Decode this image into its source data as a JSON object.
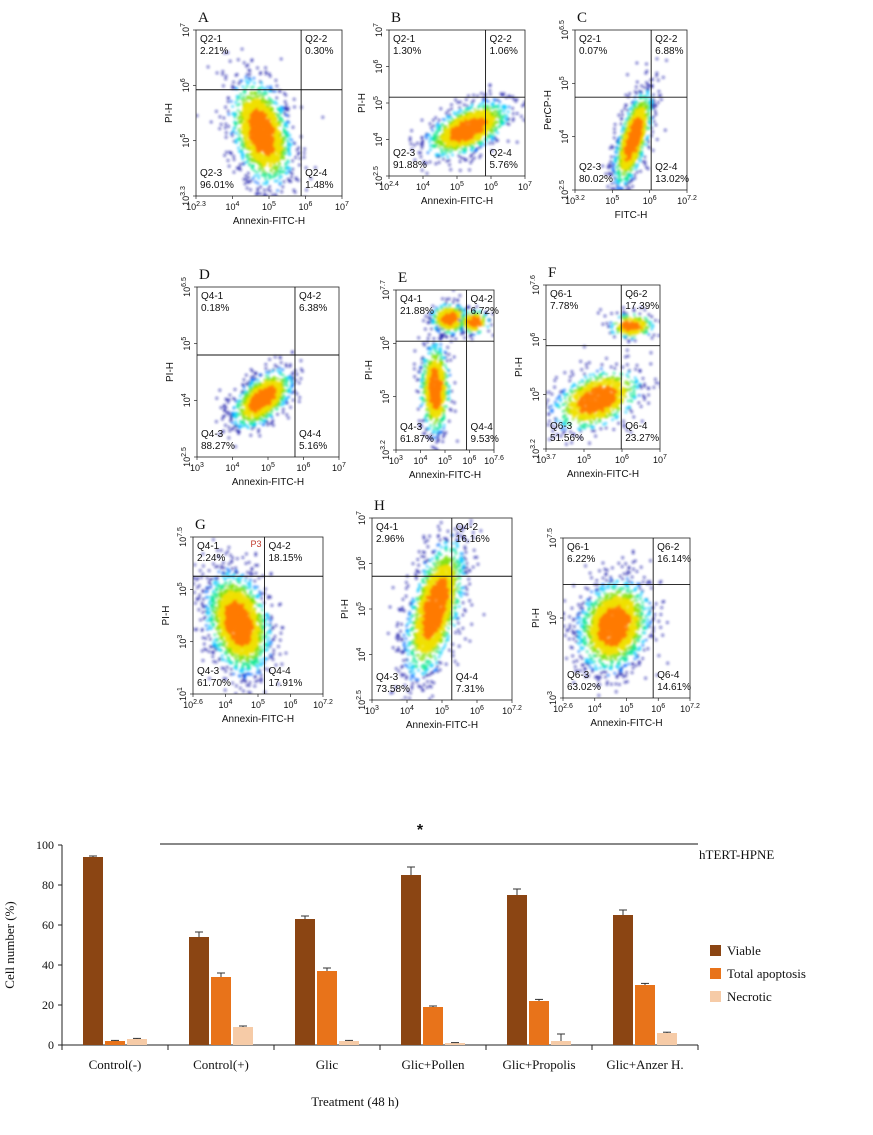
{
  "colors": {
    "viable": "#8B4513",
    "apoptosis": "#E8731A",
    "necrotic": "#F6CBA7",
    "density": [
      "#1a1aa8",
      "#0066ff",
      "#00c8ff",
      "#00e68a",
      "#7be000",
      "#f0e000",
      "#ff7a00",
      "#e00000"
    ]
  },
  "flow_panels": [
    {
      "label": "A",
      "xlabel": "Annexin-FITC-H",
      "ylabel": "PI-H",
      "xticks": [
        "10^2.3",
        "10^4",
        "10^5",
        "10^6",
        "10^7"
      ],
      "yticks": [
        "10^3.3",
        "10^5",
        "10^6",
        "10^7"
      ],
      "quadrants": [
        {
          "name": "Q2-1",
          "pct": "2.21%"
        },
        {
          "name": "Q2-2",
          "pct": "0.30%"
        },
        {
          "name": "Q2-3",
          "pct": "96.01%"
        },
        {
          "name": "Q2-4",
          "pct": "1.48%"
        }
      ]
    },
    {
      "label": "B",
      "xlabel": "Annexin-FITC-H",
      "ylabel": "PI-H",
      "xticks": [
        "10^2.4",
        "10^4",
        "10^5",
        "10^6",
        "10^7"
      ],
      "yticks": [
        "10^2.5",
        "10^4",
        "10^5",
        "10^6",
        "10^7"
      ],
      "quadrants": [
        {
          "name": "Q2-1",
          "pct": "1.30%"
        },
        {
          "name": "Q2-2",
          "pct": "1.06%"
        },
        {
          "name": "Q2-3",
          "pct": "91.88%"
        },
        {
          "name": "Q2-4",
          "pct": "5.76%"
        }
      ]
    },
    {
      "label": "C",
      "xlabel": "FITC-H",
      "ylabel": "PerCP-H",
      "xticks": [
        "10^3.2",
        "10^5",
        "10^6",
        "10^7.2"
      ],
      "yticks": [
        "10^2.5",
        "10^4",
        "10^5",
        "10^6.5"
      ],
      "quadrants": [
        {
          "name": "Q2-1",
          "pct": "0.07%"
        },
        {
          "name": "Q2-2",
          "pct": "6.88%"
        },
        {
          "name": "Q2-3",
          "pct": "80.02%"
        },
        {
          "name": "Q2-4",
          "pct": "13.02%"
        }
      ]
    },
    {
      "label": "D",
      "xlabel": "Annexin-FITC-H",
      "ylabel": "PI-H",
      "xticks": [
        "10^3",
        "10^4",
        "10^5",
        "10^6",
        "10^7"
      ],
      "yticks": [
        "10^2.5",
        "10^4",
        "10^5",
        "10^6.5"
      ],
      "quadrants": [
        {
          "name": "Q4-1",
          "pct": "0.18%"
        },
        {
          "name": "Q4-2",
          "pct": "6.38%"
        },
        {
          "name": "Q4-3",
          "pct": "88.27%"
        },
        {
          "name": "Q4-4",
          "pct": "5.16%"
        }
      ]
    },
    {
      "label": "E",
      "xlabel": "Annexin-FITC-H",
      "ylabel": "PI-H",
      "xticks": [
        "10^3",
        "10^4",
        "10^5",
        "10^6",
        "10^7.6"
      ],
      "yticks": [
        "10^3.2",
        "10^5",
        "10^6",
        "10^7.7"
      ],
      "quadrants": [
        {
          "name": "Q4-1",
          "pct": "21.88%"
        },
        {
          "name": "Q4-2",
          "pct": "6.72%"
        },
        {
          "name": "Q4-3",
          "pct": "61.87%"
        },
        {
          "name": "Q4-4",
          "pct": "9.53%"
        }
      ]
    },
    {
      "label": "F",
      "xlabel": "Annexin-FITC-H",
      "ylabel": "PI-H",
      "xticks": [
        "10^3.7",
        "10^5",
        "10^6",
        "10^7"
      ],
      "yticks": [
        "10^3.2",
        "10^5",
        "10^6",
        "10^7.6"
      ],
      "quadrants": [
        {
          "name": "Q6-1",
          "pct": "7.78%"
        },
        {
          "name": "Q6-2",
          "pct": "17.39%"
        },
        {
          "name": "Q6-3",
          "pct": "51.56%"
        },
        {
          "name": "Q6-4",
          "pct": "23.27%"
        }
      ]
    },
    {
      "label": "G",
      "xlabel": "Annexin-FITC-H",
      "ylabel": "PI-H",
      "gate": "P3",
      "xticks": [
        "10^2.6",
        "10^4",
        "10^5",
        "10^6",
        "10^7.2"
      ],
      "yticks": [
        "10^1",
        "10^3",
        "10^5",
        "10^7.5"
      ],
      "quadrants": [
        {
          "name": "Q4-1",
          "pct": "2.24%"
        },
        {
          "name": "Q4-2",
          "pct": "18.15%"
        },
        {
          "name": "Q4-3",
          "pct": "61.70%"
        },
        {
          "name": "Q4-4",
          "pct": "17.91%"
        }
      ]
    },
    {
      "label": "H",
      "xlabel": "Annexin-FITC-H",
      "ylabel": "PI-H",
      "xticks": [
        "10^3",
        "10^4",
        "10^5",
        "10^6",
        "10^7.2"
      ],
      "yticks": [
        "10^2.5",
        "10^4",
        "10^5",
        "10^6",
        "10^7"
      ],
      "quadrants": [
        {
          "name": "Q4-1",
          "pct": "2.96%"
        },
        {
          "name": "Q4-2",
          "pct": "16.16%"
        },
        {
          "name": "Q4-3",
          "pct": "73.58%"
        },
        {
          "name": "Q4-4",
          "pct": "7.31%"
        }
      ]
    },
    {
      "label": "",
      "xlabel": "Annexin-FITC-H",
      "ylabel": "PI-H",
      "xticks": [
        "10^2.6",
        "10^4",
        "10^5",
        "10^6",
        "10^7.2"
      ],
      "yticks": [
        "10^3",
        "10^5",
        "10^7.5"
      ],
      "quadrants": [
        {
          "name": "Q6-1",
          "pct": "6.22%"
        },
        {
          "name": "Q6-2",
          "pct": "16.14%"
        },
        {
          "name": "Q6-3",
          "pct": "63.02%"
        },
        {
          "name": "Q6-4",
          "pct": "14.61%"
        }
      ]
    }
  ],
  "chart_data": {
    "type": "bar",
    "title": "hTERT-HPNE",
    "xlabel": "Treatment (48 h)",
    "ylabel": "Cell number (%)",
    "ylim": [
      0,
      100
    ],
    "yticks": [
      0,
      20,
      40,
      60,
      80,
      100
    ],
    "categories": [
      "Control(-)",
      "Control(+)",
      "Glic",
      "Glic+Pollen",
      "Glic+Propolis",
      "Glic+Anzer H."
    ],
    "series": [
      {
        "name": "Viable",
        "values": [
          94,
          54,
          63,
          85,
          75,
          65
        ],
        "errors": [
          0.5,
          2.5,
          1.5,
          4,
          3,
          2.5
        ]
      },
      {
        "name": "Total apoptosis",
        "values": [
          2,
          34,
          37,
          19,
          22,
          30
        ],
        "errors": [
          0.3,
          2,
          1.5,
          0.5,
          0.8,
          0.8
        ]
      },
      {
        "name": "Necrotic",
        "values": [
          3,
          9,
          2,
          1,
          2,
          6
        ],
        "errors": [
          0.3,
          0.5,
          0.3,
          0.2,
          3.5,
          0.4
        ]
      }
    ],
    "significance_mark": "*",
    "legend_position": "right"
  }
}
